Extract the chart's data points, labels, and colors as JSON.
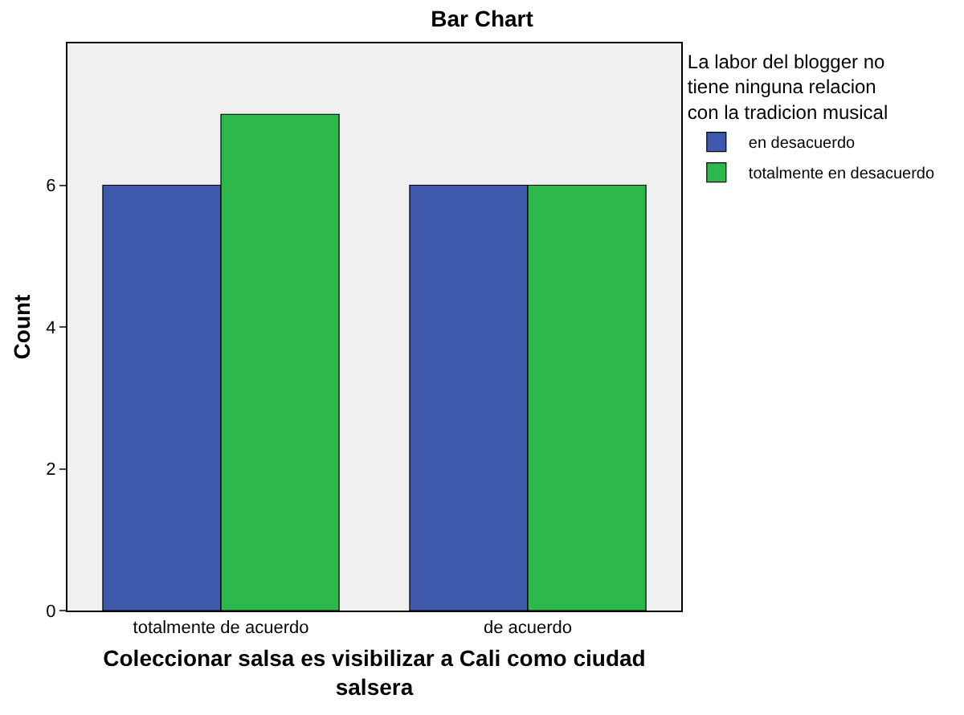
{
  "chart_data": {
    "type": "bar",
    "title": "Bar Chart",
    "categories": [
      "totalmente de acuerdo",
      "de acuerdo"
    ],
    "series": [
      {
        "name": "en desacuerdo",
        "color": "#3e58ac",
        "values": [
          6,
          6
        ]
      },
      {
        "name": "totalmente en desacuerdo",
        "color": "#2db84c",
        "values": [
          7,
          6
        ]
      }
    ],
    "xlabel": "Coleccionar salsa es visibilizar a Cali como ciudad salsera",
    "ylabel": "Count",
    "legend_title": "La labor del blogger no tiene ninguna relacion con la tradicion musical",
    "ylim": [
      0,
      8
    ],
    "yticks": [
      0,
      2,
      4,
      6
    ],
    "grid": false,
    "legend": "top right"
  }
}
